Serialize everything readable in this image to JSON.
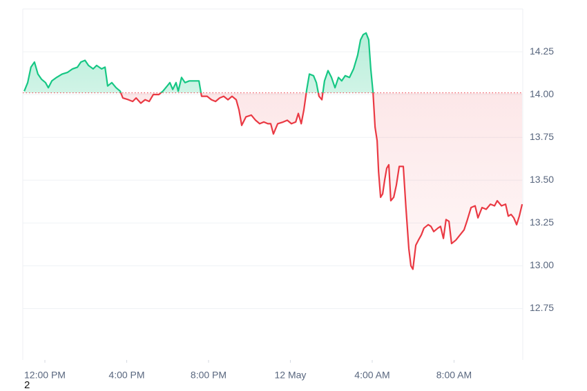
{
  "chart_data": {
    "type": "baseline-line",
    "baseline": 14.01,
    "colors": {
      "up": "#16c784",
      "down": "#ea3943"
    },
    "grid": true,
    "xlim": [
      -1.08,
      23.36
    ],
    "ylim": [
      12.45,
      14.5
    ],
    "xticks": [
      {
        "value": 0,
        "label": "12:00 PM"
      },
      {
        "value": 4,
        "label": "4:00 PM"
      },
      {
        "value": 8,
        "label": "8:00 PM"
      },
      {
        "value": 12,
        "label": "12 May"
      },
      {
        "value": 16,
        "label": "4:00 AM"
      },
      {
        "value": 20,
        "label": "8:00 AM"
      }
    ],
    "yticks": [
      12.75,
      {
        "value": 13,
        "label": "13.00"
      },
      13.25,
      {
        "value": 13.5,
        "label": "13.50"
      },
      13.75,
      {
        "value": 14,
        "label": "14.00"
      },
      14.25
    ],
    "x": [
      -1.01,
      -0.84,
      -0.68,
      -0.51,
      -0.34,
      -0.17,
      0.03,
      0.17,
      0.34,
      0.57,
      0.84,
      1.11,
      1.35,
      1.59,
      1.76,
      1.96,
      2.13,
      2.36,
      2.53,
      2.77,
      2.94,
      3.07,
      3.27,
      3.48,
      3.68,
      3.81,
      4.08,
      4.29,
      4.46,
      4.69,
      4.9,
      5.1,
      5.3,
      5.57,
      5.77,
      5.98,
      6.11,
      6.25,
      6.41,
      6.52,
      6.68,
      6.85,
      7.06,
      7.33,
      7.53,
      7.66,
      7.93,
      8.14,
      8.34,
      8.54,
      8.74,
      8.95,
      9.15,
      9.35,
      9.49,
      9.62,
      9.83,
      10.09,
      10.3,
      10.5,
      10.7,
      10.9,
      11.04,
      11.17,
      11.38,
      11.65,
      11.85,
      12.05,
      12.26,
      12.39,
      12.53,
      12.66,
      12.8,
      12.93,
      13.13,
      13.27,
      13.4,
      13.54,
      13.67,
      13.84,
      14.01,
      14.18,
      14.35,
      14.51,
      14.68,
      14.89,
      15.09,
      15.29,
      15.43,
      15.56,
      15.7,
      15.83,
      15.93,
      16.04,
      16.14,
      16.24,
      16.31,
      16.41,
      16.51,
      16.61,
      16.71,
      16.81,
      16.91,
      17.05,
      17.18,
      17.32,
      17.52,
      17.65,
      17.79,
      17.89,
      17.99,
      18.13,
      18.26,
      18.4,
      18.53,
      18.74,
      18.87,
      19.01,
      19.21,
      19.34,
      19.48,
      19.61,
      19.75,
      19.88,
      20.09,
      20.29,
      20.49,
      20.63,
      20.83,
      21.03,
      21.17,
      21.37,
      21.57,
      21.78,
      21.98,
      22.11,
      22.32,
      22.52,
      22.65,
      22.79,
      22.92,
      23.06,
      23.19,
      23.33
    ],
    "values": [
      14.02,
      14.07,
      14.16,
      14.19,
      14.12,
      14.09,
      14.07,
      14.04,
      14.08,
      14.1,
      14.12,
      14.13,
      14.15,
      14.16,
      14.19,
      14.2,
      14.17,
      14.15,
      14.17,
      14.15,
      14.16,
      14.05,
      14.07,
      14.04,
      14.02,
      13.98,
      13.97,
      13.96,
      13.98,
      13.95,
      13.97,
      13.96,
      14.0,
      14.0,
      14.02,
      14.05,
      14.07,
      14.03,
      14.07,
      14.02,
      14.1,
      14.07,
      14.08,
      14.08,
      14.08,
      13.99,
      13.99,
      13.97,
      13.96,
      13.98,
      13.99,
      13.97,
      13.99,
      13.97,
      13.91,
      13.82,
      13.87,
      13.88,
      13.85,
      13.83,
      13.84,
      13.83,
      13.83,
      13.77,
      13.83,
      13.84,
      13.85,
      13.83,
      13.84,
      13.89,
      13.83,
      13.91,
      14.03,
      14.12,
      14.11,
      14.07,
      13.99,
      13.97,
      14.08,
      14.14,
      14.1,
      14.04,
      14.1,
      14.08,
      14.11,
      14.1,
      14.15,
      14.23,
      14.32,
      14.35,
      14.36,
      14.32,
      14.15,
      14.01,
      13.81,
      13.73,
      13.55,
      13.4,
      13.42,
      13.5,
      13.57,
      13.59,
      13.38,
      13.4,
      13.47,
      13.58,
      13.58,
      13.34,
      13.1,
      13.0,
      12.98,
      13.12,
      13.15,
      13.18,
      13.22,
      13.24,
      13.23,
      13.2,
      13.22,
      13.23,
      13.16,
      13.27,
      13.26,
      13.13,
      13.15,
      13.18,
      13.21,
      13.26,
      13.34,
      13.35,
      13.28,
      13.34,
      13.33,
      13.36,
      13.35,
      13.38,
      13.35,
      13.36,
      13.29,
      13.3,
      13.28,
      13.24,
      13.29,
      13.36
    ]
  },
  "footer_text": "2"
}
